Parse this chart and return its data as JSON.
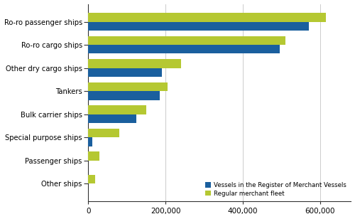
{
  "categories": [
    "Ro-ro passenger ships",
    "Ro-ro cargo ships",
    "Other dry cargo ships",
    "Tankers",
    "Bulk carrier ships",
    "Special purpose ships",
    "Passenger ships",
    "Other ships"
  ],
  "register_values": [
    570000,
    495000,
    190000,
    185000,
    125000,
    10000,
    0,
    0
  ],
  "regular_values": [
    615000,
    510000,
    240000,
    205000,
    150000,
    80000,
    30000,
    18000
  ],
  "register_color": "#1a5f9e",
  "regular_color": "#b5c832",
  "legend_labels": [
    "Vessels in the Register of Merchant Vessels",
    "Regular merchant fleet"
  ],
  "xlim": [
    0,
    680000
  ],
  "xticks": [
    0,
    200000,
    400000,
    600000
  ],
  "bar_height": 0.38,
  "background_color": "#ffffff",
  "figure_width": 5.0,
  "figure_height": 3.08,
  "dpi": 100
}
